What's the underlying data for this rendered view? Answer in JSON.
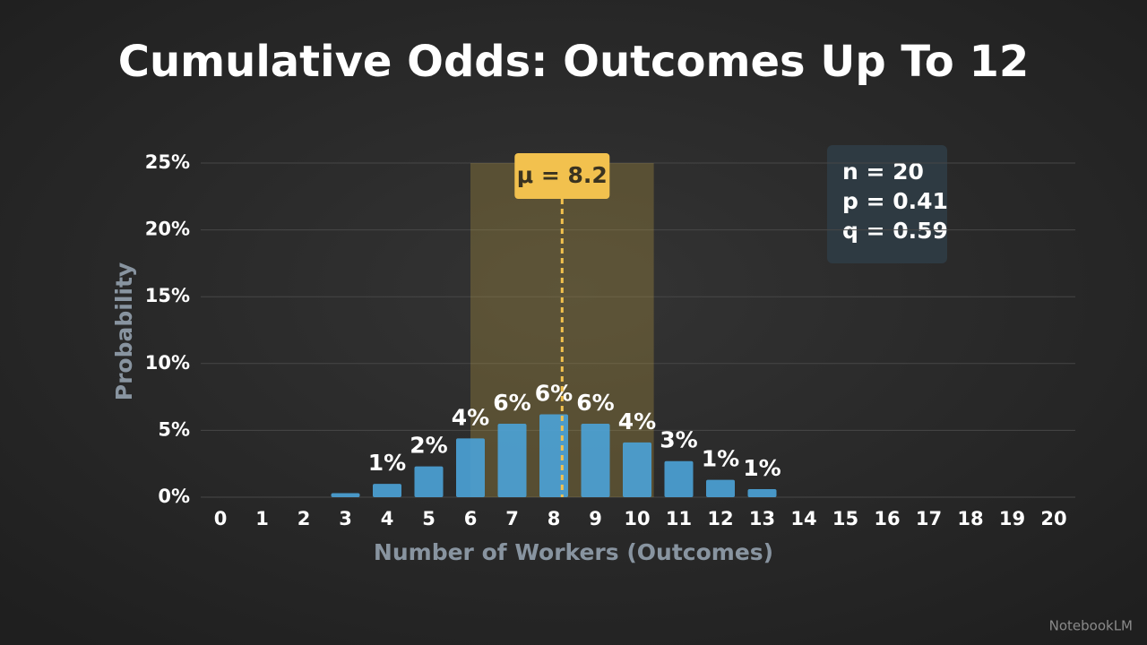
{
  "chart_data": {
    "type": "bar",
    "title": "Cumulative Odds: Outcomes Up To 12",
    "x_label": "Number of Workers (Outcomes)",
    "y_label": "Probability",
    "categories": [
      "0",
      "1",
      "2",
      "3",
      "4",
      "5",
      "6",
      "7",
      "8",
      "9",
      "10",
      "11",
      "12",
      "13",
      "14",
      "15",
      "16",
      "17",
      "18",
      "19",
      "20"
    ],
    "values": [
      0,
      0,
      0,
      0.3,
      1.0,
      2.3,
      4.4,
      5.5,
      6.2,
      5.5,
      4.1,
      2.7,
      1.3,
      0.6,
      0,
      0,
      0,
      0,
      0,
      0,
      0
    ],
    "value_labels": [
      null,
      null,
      null,
      null,
      "1%",
      "2%",
      "4%",
      "6%",
      "6%",
      "6%",
      "4%",
      "3%",
      "1%",
      "1%",
      null,
      null,
      null,
      null,
      null,
      null,
      null
    ],
    "color": "#4ba3d8",
    "ylim": [
      0,
      25
    ],
    "yticks": [
      {
        "value": 0,
        "label": "0%"
      },
      {
        "value": 5,
        "label": "5%"
      },
      {
        "value": 10,
        "label": "10%"
      },
      {
        "value": 15,
        "label": "15%"
      },
      {
        "value": 20,
        "label": "20%"
      },
      {
        "value": 25,
        "label": "25%"
      }
    ],
    "grid": true,
    "mean": 8.2,
    "mean_label": "μ = 8.2",
    "shaded_range": [
      6.0,
      10.4
    ],
    "stats": [
      "n = 20",
      "p = 0.41",
      "q = 0.59"
    ]
  },
  "watermark": "NotebookLM"
}
